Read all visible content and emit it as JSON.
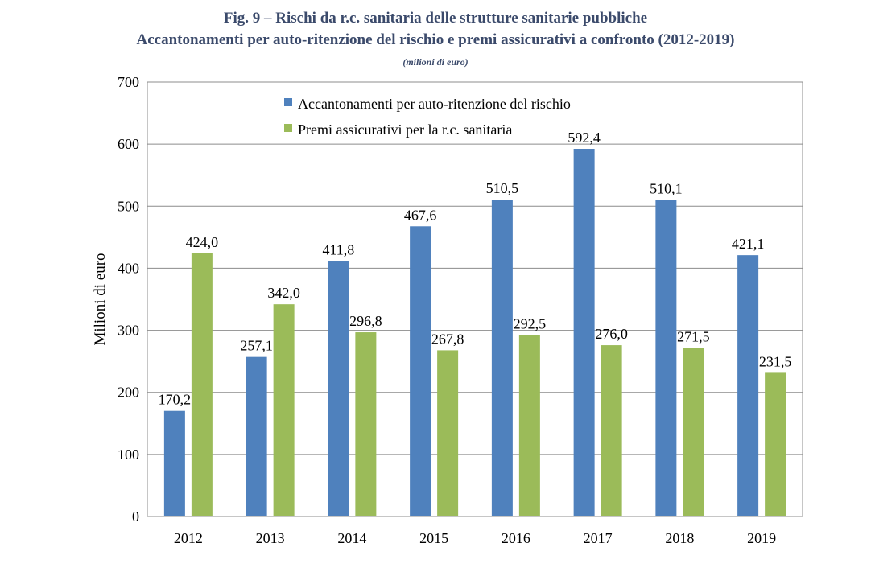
{
  "chart_data": {
    "type": "bar",
    "title": "Fig. 9 – Rischi da r.c. sanitaria delle strutture sanitarie pubbliche",
    "subtitle": "Accantonamenti per auto-ritenzione del rischio e premi assicurativi a confronto (2012-2019)",
    "unit_note": "(milioni di euro)",
    "xlabel": "",
    "ylabel": "Milioni di euro",
    "ylim": [
      0,
      700
    ],
    "yticks": [
      0,
      100,
      200,
      300,
      400,
      500,
      600,
      700
    ],
    "grid": true,
    "legend_position": "top-right",
    "categories": [
      "2012",
      "2013",
      "2014",
      "2015",
      "2016",
      "2017",
      "2018",
      "2019"
    ],
    "series": [
      {
        "name": "Accantonamenti per auto-ritenzione del rischio",
        "color": "#4f81bd",
        "values": [
          170.2,
          257.1,
          411.8,
          467.6,
          510.5,
          592.4,
          510.1,
          421.1
        ],
        "labels": [
          "170,2",
          "257,1",
          "411,8",
          "467,6",
          "510,5",
          "592,4",
          "510,1",
          "421,1"
        ]
      },
      {
        "name": "Premi assicurativi per la r.c. sanitaria",
        "color": "#9bbb59",
        "values": [
          424.0,
          342.0,
          296.8,
          267.8,
          292.5,
          276.0,
          271.5,
          231.5
        ],
        "labels": [
          "424,0",
          "342,0",
          "296,8",
          "267,8",
          "292,5",
          "276,0",
          "271,5",
          "231,5"
        ]
      }
    ]
  }
}
